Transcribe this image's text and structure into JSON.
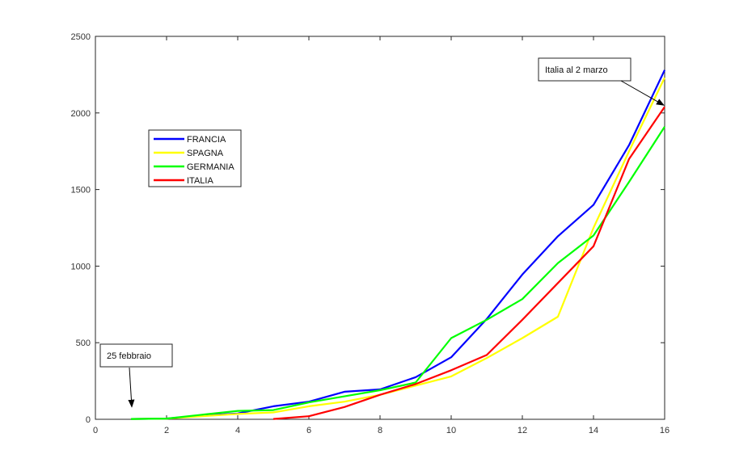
{
  "chart_data": {
    "type": "line",
    "xlim": [
      0,
      16
    ],
    "ylim": [
      0,
      2500
    ],
    "x_ticks": [
      0,
      2,
      4,
      6,
      8,
      10,
      12,
      14,
      16
    ],
    "y_ticks": [
      0,
      500,
      1000,
      1500,
      2000,
      2500
    ],
    "grid": false,
    "legend_location": "upper-left",
    "series": [
      {
        "name": "FRANCIA",
        "color": "#0000ff",
        "x": [
          1,
          2,
          3,
          4,
          5,
          6,
          7,
          8,
          9,
          10,
          11,
          12,
          13,
          14,
          15,
          16
        ],
        "y": [
          2,
          5,
          25,
          38,
          85,
          115,
          180,
          195,
          275,
          405,
          655,
          945,
          1195,
          1400,
          1790,
          2280
        ]
      },
      {
        "name": "SPAGNA",
        "color": "#ffff00",
        "x": [
          1,
          2,
          3,
          4,
          5,
          6,
          7,
          8,
          9,
          10,
          11,
          12,
          13,
          14,
          15,
          16
        ],
        "y": [
          2,
          5,
          20,
          35,
          45,
          85,
          115,
          160,
          220,
          280,
          400,
          530,
          670,
          1250,
          1750,
          2230
        ]
      },
      {
        "name": "GERMANIA",
        "color": "#00ff00",
        "x": [
          1,
          2,
          3,
          4,
          5,
          6,
          7,
          8,
          9,
          10,
          11,
          12,
          13,
          14,
          15,
          16
        ],
        "y": [
          2,
          5,
          30,
          55,
          60,
          110,
          150,
          190,
          240,
          530,
          650,
          785,
          1020,
          1200,
          1550,
          1910
        ]
      },
      {
        "name": "ITALIA",
        "color": "#ff0000",
        "x": [
          5,
          6,
          7,
          8,
          9,
          10,
          11,
          12,
          13,
          14,
          15,
          16
        ],
        "y": [
          2,
          20,
          80,
          160,
          230,
          320,
          420,
          650,
          890,
          1130,
          1700,
          2040
        ]
      }
    ],
    "annotations": [
      {
        "text": "25 febbraio",
        "arrow_to": [
          1,
          70
        ]
      },
      {
        "text": "Italia al 2 marzo",
        "arrow_to": [
          16,
          2040
        ]
      }
    ]
  }
}
